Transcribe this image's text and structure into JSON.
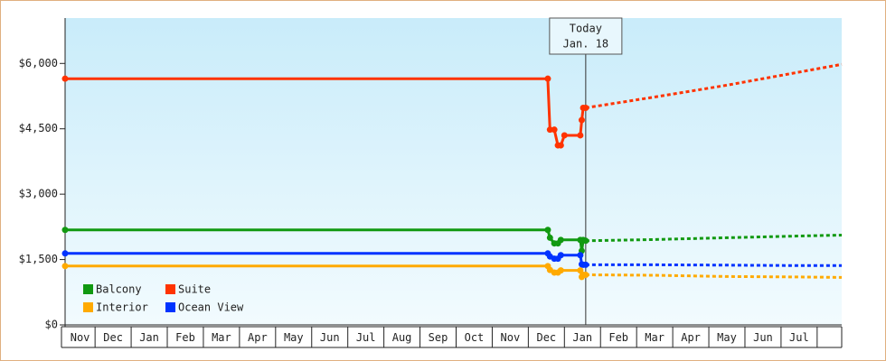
{
  "chart_data": {
    "type": "line",
    "categories": [
      "Nov",
      "Dec",
      "Jan",
      "Feb",
      "Mar",
      "Apr",
      "May",
      "Jun",
      "Jul",
      "Aug",
      "Sep",
      "Oct",
      "Nov",
      "Dec",
      "Jan",
      "Feb",
      "Mar",
      "Apr",
      "May",
      "Jun",
      "Jul"
    ],
    "xlim": [
      0.17,
      21.68
    ],
    "ylim": [
      0,
      7000
    ],
    "yticks": [
      {
        "value": 0,
        "label": "$0"
      },
      {
        "value": 1500,
        "label": "$1,500"
      },
      {
        "value": 3000,
        "label": "$3,000"
      },
      {
        "value": 4500,
        "label": "$4,500"
      },
      {
        "value": 6000,
        "label": "$6,000"
      }
    ],
    "annotation": {
      "x": 14.59,
      "lines": [
        "Today",
        "Jan. 18"
      ]
    },
    "legend": "lower left",
    "series": [
      {
        "name": "Balcony",
        "color": "#119911",
        "x": [
          0.17,
          13.54,
          13.6,
          13.72,
          13.82,
          13.9,
          14.44,
          14.48,
          14.52,
          14.59
        ],
        "values": [
          2180,
          2180,
          2000,
          1870,
          1870,
          1950,
          1950,
          1700,
          1950,
          1930
        ],
        "projection": {
          "x": [
            14.59,
            16.5,
            18.5,
            20.5,
            21.68
          ],
          "values": [
            1930,
            1960,
            2000,
            2040,
            2060
          ]
        }
      },
      {
        "name": "Suite",
        "color": "#ff3300",
        "x": [
          0.17,
          13.54,
          13.6,
          13.72,
          13.82,
          13.9,
          14.0,
          14.44,
          14.48,
          14.52,
          14.59
        ],
        "values": [
          5650,
          5650,
          4480,
          4480,
          4120,
          4120,
          4350,
          4350,
          4700,
          4980,
          4980
        ],
        "projection": {
          "x": [
            14.59,
            16.5,
            18.5,
            20.5,
            21.68
          ],
          "values": [
            4980,
            5230,
            5500,
            5800,
            5980
          ]
        }
      },
      {
        "name": "Interior",
        "color": "#ffaa00",
        "x": [
          0.17,
          13.54,
          13.6,
          13.72,
          13.82,
          13.9,
          14.44,
          14.48,
          14.52,
          14.59
        ],
        "values": [
          1350,
          1350,
          1260,
          1200,
          1200,
          1250,
          1250,
          1100,
          1150,
          1150
        ],
        "projection": {
          "x": [
            14.59,
            16.5,
            18.5,
            20.5,
            21.68
          ],
          "values": [
            1150,
            1140,
            1110,
            1100,
            1090
          ]
        }
      },
      {
        "name": "Ocean View",
        "color": "#0033ff",
        "x": [
          0.17,
          13.54,
          13.6,
          13.72,
          13.82,
          13.9,
          14.44,
          14.48,
          14.52,
          14.59
        ],
        "values": [
          1640,
          1640,
          1570,
          1520,
          1520,
          1600,
          1600,
          1390,
          1380,
          1380
        ],
        "projection": {
          "x": [
            14.59,
            16.5,
            18.5,
            20.5,
            21.68
          ],
          "values": [
            1380,
            1380,
            1370,
            1360,
            1360
          ]
        }
      }
    ]
  }
}
